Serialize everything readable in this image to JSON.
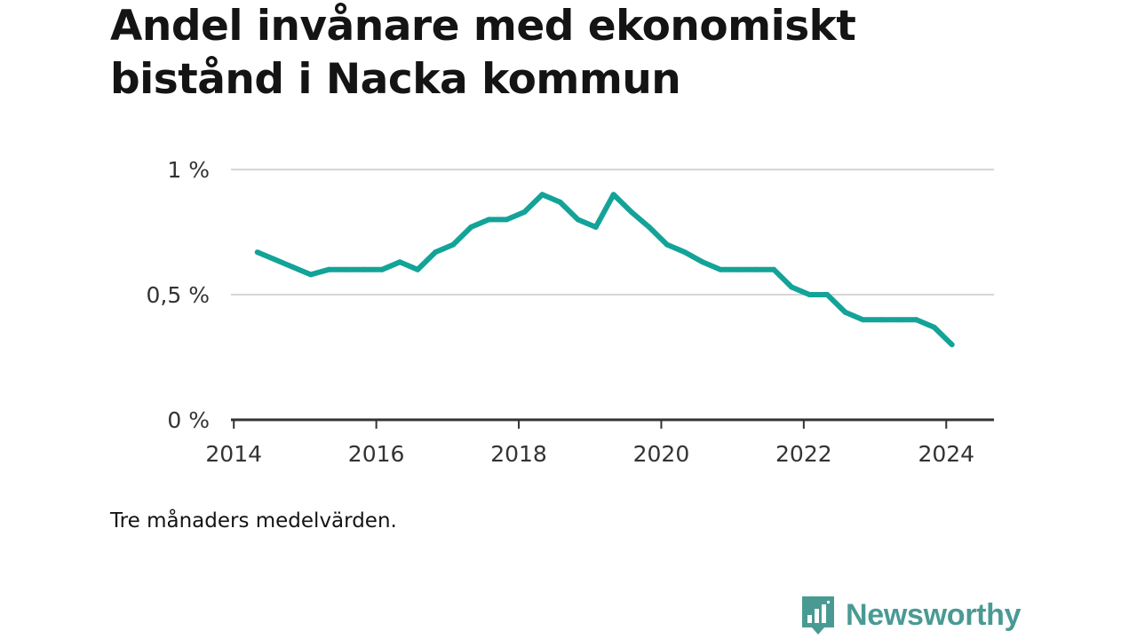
{
  "title_lines": [
    "Andel invånare med ekonomiskt",
    "bistånd i Nacka kommun"
  ],
  "note": "Tre månaders medelvärden.",
  "brand": {
    "name": "Newsworthy",
    "icon": "chart-speech-bubble-icon",
    "color": "#4a9a94"
  },
  "colors": {
    "line": "#13a398",
    "grid": "#d6d6d6",
    "axis": "#333333",
    "text": "#333333"
  },
  "chart_data": {
    "type": "line",
    "title": "Andel invånare med ekonomiskt bistånd i Nacka kommun",
    "xlabel": "",
    "ylabel": "",
    "x_ticks": [
      "2014",
      "2016",
      "2018",
      "2020",
      "2022",
      "2024"
    ],
    "y_ticks": [
      "0 %",
      "0,5 %",
      "1 %"
    ],
    "y_tick_values": [
      0,
      0.5,
      1.0
    ],
    "xlim": [
      2013.96,
      2024.67
    ],
    "ylim": [
      0,
      1.0
    ],
    "grid": true,
    "series": [
      {
        "x": [
          2014.33,
          2014.58,
          2014.83,
          2015.08,
          2015.33,
          2015.58,
          2015.83,
          2016.08,
          2016.33,
          2016.58,
          2016.83,
          2017.08,
          2017.33,
          2017.58,
          2017.83,
          2018.08,
          2018.33,
          2018.58,
          2018.83,
          2019.08,
          2019.33,
          2019.58,
          2019.83,
          2020.08,
          2020.33,
          2020.58,
          2020.83,
          2021.08,
          2021.33,
          2021.58,
          2021.83,
          2022.08,
          2022.33,
          2022.58,
          2022.83,
          2023.08,
          2023.33,
          2023.58,
          2023.83,
          2024.08
        ],
        "y": [
          0.67,
          0.64,
          0.61,
          0.58,
          0.6,
          0.6,
          0.6,
          0.6,
          0.63,
          0.6,
          0.67,
          0.7,
          0.77,
          0.8,
          0.8,
          0.83,
          0.9,
          0.87,
          0.8,
          0.77,
          0.9,
          0.83,
          0.77,
          0.7,
          0.67,
          0.63,
          0.6,
          0.6,
          0.6,
          0.6,
          0.53,
          0.5,
          0.5,
          0.43,
          0.4,
          0.4,
          0.4,
          0.4,
          0.37,
          0.3
        ]
      }
    ]
  }
}
